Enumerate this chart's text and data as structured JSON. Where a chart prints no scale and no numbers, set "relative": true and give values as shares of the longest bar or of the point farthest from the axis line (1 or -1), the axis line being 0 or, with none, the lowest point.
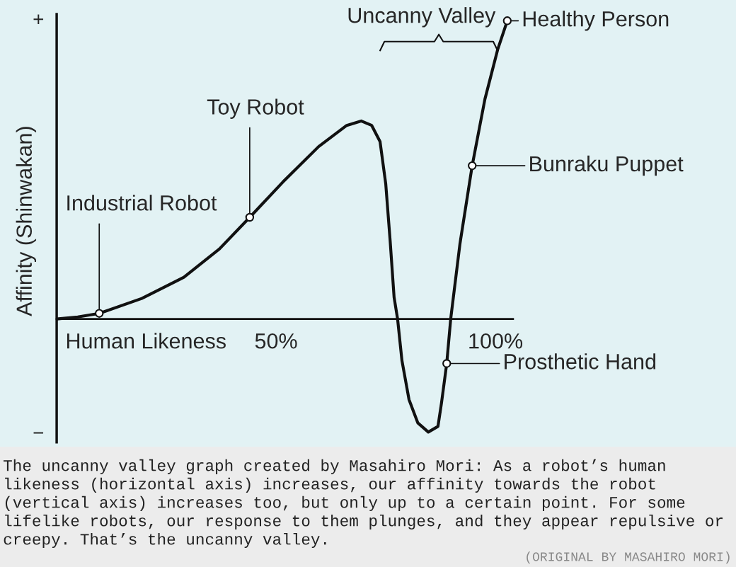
{
  "chart_data": {
    "type": "line",
    "relative": true,
    "xlabel": "Human Likeness",
    "ylabel": "Affinity (Shinwakan)",
    "xlim": [
      0,
      104
    ],
    "xticks": [
      {
        "value": 50,
        "label": "50%"
      },
      {
        "value": 100,
        "label": "100%"
      }
    ],
    "x": [
      0,
      4.8,
      9.7,
      19.4,
      29.0,
      37.1,
      44.0,
      51.6,
      59.7,
      66.1,
      69.4,
      71.8,
      73.7,
      75.0,
      76.0,
      76.9,
      77.7,
      78.7,
      80.3,
      82.3,
      84.7,
      86.9,
      87.7,
      88.9,
      89.8,
      91.9,
      94.7,
      97.6,
      100.5,
      102.7
    ],
    "series": [
      {
        "color": "#111111",
        "values": [
          0,
          0.007,
          0.019,
          0.069,
          0.14,
          0.235,
          0.341,
          0.46,
          0.578,
          0.649,
          0.664,
          0.649,
          0.595,
          0.453,
          0.263,
          0.073,
          0,
          -0.14,
          -0.27,
          -0.348,
          -0.379,
          -0.36,
          -0.282,
          -0.149,
          0,
          0.251,
          0.514,
          0.737,
          0.903,
          1.0
        ]
      },
      {
        "type": "scatter",
        "color": "#ffffff",
        "marker": "circle",
        "x": [
          9.7,
          44.0,
          88.9,
          94.7,
          102.7
        ],
        "values": [
          0.019,
          0.341,
          -0.149,
          0.514,
          1.0
        ]
      }
    ],
    "annotations": [
      {
        "text": "Industrial Robot",
        "x": 9.7,
        "y": 0.019
      },
      {
        "text": "Toy Robot",
        "x": 44.0,
        "y": 0.341
      },
      {
        "text": "Prosthetic Hand",
        "x": 88.9,
        "y": -0.149
      },
      {
        "text": "Bunraku Puppet",
        "x": 94.7,
        "y": 0.514
      },
      {
        "text": "Healthy Person",
        "x": 102.7,
        "y": 1.0
      },
      "Uncanny Valley",
      "+",
      "−",
      "The uncanny valley graph created by Masahiro Mori: As a robot’s human likeness (horizontal axis) increases, our affinity towards the robot (vertical axis) increases too, but only up to a certain point. For some lifelike robots, our response to them plunges, and they appear repulsive or creepy. That’s the uncanny valley.",
      "(ORIGINAL BY MASAHIRO MORI)"
    ],
    "grid": false,
    "legend": false
  }
}
